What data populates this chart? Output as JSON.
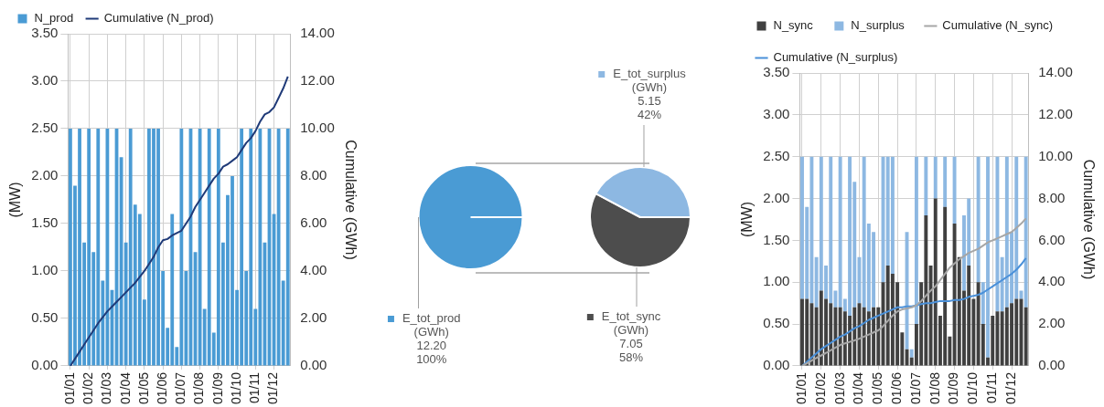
{
  "chart_data": [
    {
      "type": "bar",
      "legend": "top",
      "grid": true,
      "ylabel": "(MW)",
      "y2label": "Cumulative (GWh)",
      "categories": [
        "01/01",
        null,
        null,
        null,
        "01/02",
        null,
        null,
        null,
        "01/03",
        null,
        null,
        null,
        "01/04",
        null,
        null,
        null,
        "01/05",
        null,
        null,
        null,
        "01/06",
        null,
        null,
        null,
        "01/07",
        null,
        null,
        null,
        "01/08",
        null,
        null,
        null,
        "01/09",
        null,
        null,
        null,
        "01/10",
        null,
        null,
        null,
        "01/11",
        null,
        null,
        null,
        "01/12",
        null,
        null,
        null
      ],
      "ylim": [
        0,
        3.5
      ],
      "yticks": [
        {
          "value": 0,
          "label": "0.00"
        },
        {
          "value": 0.5,
          "label": "0.50"
        },
        {
          "value": 1,
          "label": "1.00"
        },
        {
          "value": 1.5,
          "label": "1.50"
        },
        {
          "value": 2,
          "label": "2.00"
        },
        {
          "value": 2.5,
          "label": "2.50"
        },
        {
          "value": 3,
          "label": "3.00"
        },
        {
          "value": 3.5,
          "label": "3.50"
        }
      ],
      "y2lim": [
        0,
        14
      ],
      "y2ticks": [
        {
          "value": 0,
          "label": "0.00"
        },
        {
          "value": 2,
          "label": "2.00"
        },
        {
          "value": 4,
          "label": "4.00"
        },
        {
          "value": 6,
          "label": "6.00"
        },
        {
          "value": 8,
          "label": "8.00"
        },
        {
          "value": 10,
          "label": "10.00"
        },
        {
          "value": 12,
          "label": "12.00"
        },
        {
          "value": 14,
          "label": "14.00"
        }
      ],
      "series": [
        {
          "name": "N_prod",
          "color": "#4a9bd4",
          "values": [
            2.5,
            1.9,
            2.5,
            1.3,
            2.5,
            1.2,
            2.5,
            0.9,
            2.5,
            0.8,
            2.5,
            2.2,
            1.3,
            2.5,
            1.7,
            1.6,
            0.7,
            2.5,
            2.5,
            2.5,
            1.0,
            0.4,
            1.6,
            0.2,
            2.5,
            1.0,
            2.5,
            1.2,
            2.5,
            0.6,
            2.5,
            0.35,
            2.5,
            1.3,
            1.8,
            2.0,
            0.8,
            2.5,
            1.0,
            2.5,
            0.6,
            2.5,
            1.3,
            2.5,
            1.6,
            2.5,
            0.9,
            2.5
          ]
        },
        {
          "name": "Cumulative (N_prod)",
          "type": "line",
          "axis": "y2",
          "color": "#1f3a78",
          "values": [
            0,
            0.3,
            0.6,
            0.9,
            1.2,
            1.5,
            1.8,
            2.05,
            2.3,
            2.5,
            2.7,
            2.9,
            3.1,
            3.3,
            3.5,
            3.75,
            4.0,
            4.3,
            4.6,
            5.0,
            5.3,
            5.35,
            5.5,
            5.6,
            5.7,
            6.0,
            6.3,
            6.7,
            7.0,
            7.3,
            7.6,
            7.9,
            8.1,
            8.4,
            8.5,
            8.65,
            8.8,
            9.1,
            9.4,
            9.6,
            9.9,
            10.3,
            10.6,
            10.7,
            10.9,
            11.3,
            11.7,
            12.2
          ]
        }
      ]
    },
    {
      "type": "pie",
      "legend": "bottom left",
      "categories": [
        "E_tot_prod (GWh)"
      ],
      "values": [
        12.2
      ],
      "colors": [
        "#4a9bd4"
      ],
      "value_labels": [
        "12.20"
      ],
      "annotations": [
        "100%"
      ]
    },
    {
      "type": "pie",
      "legend": "right",
      "categories": [
        "E_tot_sync (GWh)",
        "E_tot_surplus (GWh)"
      ],
      "values": [
        7.05,
        5.15
      ],
      "colors": [
        "#4d4d4d",
        "#8db8e2"
      ],
      "value_labels": [
        "7.05",
        "5.15"
      ],
      "annotations": [
        "58%",
        "42%"
      ]
    },
    {
      "type": "bar",
      "legend": "top",
      "grid": true,
      "stacked": true,
      "ylabel": "(MW)",
      "y2label": "Cumulative (GWh)",
      "categories": [
        "01/01",
        null,
        null,
        null,
        "01/02",
        null,
        null,
        null,
        "01/03",
        null,
        null,
        null,
        "01/04",
        null,
        null,
        null,
        "01/05",
        null,
        null,
        null,
        "01/06",
        null,
        null,
        null,
        "01/07",
        null,
        null,
        null,
        "01/08",
        null,
        null,
        null,
        "01/09",
        null,
        null,
        null,
        "01/10",
        null,
        null,
        null,
        "01/11",
        null,
        null,
        null,
        "01/12",
        null,
        null,
        null
      ],
      "ylim": [
        0,
        3.5
      ],
      "yticks": [
        {
          "value": 0,
          "label": "0.00"
        },
        {
          "value": 0.5,
          "label": "0.50"
        },
        {
          "value": 1,
          "label": "1.00"
        },
        {
          "value": 1.5,
          "label": "1.50"
        },
        {
          "value": 2,
          "label": "2.00"
        },
        {
          "value": 2.5,
          "label": "2.50"
        },
        {
          "value": 3,
          "label": "3.00"
        },
        {
          "value": 3.5,
          "label": "3.50"
        }
      ],
      "y2lim": [
        0,
        14
      ],
      "y2ticks": [
        {
          "value": 0,
          "label": "0.00"
        },
        {
          "value": 2,
          "label": "2.00"
        },
        {
          "value": 4,
          "label": "4.00"
        },
        {
          "value": 6,
          "label": "6.00"
        },
        {
          "value": 8,
          "label": "8.00"
        },
        {
          "value": 10,
          "label": "10.00"
        },
        {
          "value": 12,
          "label": "12.00"
        },
        {
          "value": 14,
          "label": "14.00"
        }
      ],
      "series": [
        {
          "name": "N_sync",
          "color": "#404040",
          "values": [
            0.8,
            0.8,
            0.75,
            0.7,
            0.9,
            0.8,
            0.75,
            0.7,
            0.7,
            0.65,
            0.6,
            0.7,
            0.75,
            0.7,
            0.65,
            0.7,
            0.7,
            1.0,
            1.2,
            1.1,
            1.0,
            0.4,
            0.2,
            0.1,
            0.5,
            1.0,
            1.8,
            1.2,
            2.0,
            0.6,
            1.9,
            0.35,
            1.7,
            1.3,
            0.9,
            1.2,
            0.8,
            1.0,
            0.5,
            0.1,
            0.6,
            0.65,
            0.65,
            0.7,
            0.75,
            0.8,
            0.8,
            0.7
          ]
        },
        {
          "name": "N_surplus",
          "color": "#8db8e2",
          "values": [
            1.7,
            1.1,
            1.75,
            0.6,
            1.6,
            0.4,
            1.75,
            0.2,
            1.8,
            0.15,
            1.9,
            1.5,
            0.55,
            1.8,
            1.05,
            0.9,
            0,
            1.5,
            1.3,
            1.4,
            0,
            0,
            1.4,
            0.1,
            2.0,
            0,
            0.7,
            0,
            0.5,
            0,
            0.6,
            0,
            0.8,
            0,
            0.9,
            0.8,
            0,
            1.5,
            0.5,
            2.4,
            0,
            1.85,
            0.65,
            1.8,
            0.85,
            1.7,
            0.1,
            1.8
          ]
        },
        {
          "name": "Cumulative (N_sync)",
          "type": "line",
          "axis": "y2",
          "color": "#a6a6a6",
          "values": [
            0,
            0.12,
            0.25,
            0.38,
            0.5,
            0.62,
            0.75,
            0.88,
            1.0,
            1.08,
            1.15,
            1.22,
            1.3,
            1.4,
            1.5,
            1.6,
            1.7,
            1.9,
            2.15,
            2.4,
            2.6,
            2.7,
            2.75,
            2.8,
            2.9,
            3.1,
            3.35,
            3.6,
            3.8,
            4.1,
            4.4,
            4.7,
            4.9,
            5.1,
            5.25,
            5.4,
            5.5,
            5.6,
            5.75,
            5.9,
            6.0,
            6.1,
            6.2,
            6.3,
            6.4,
            6.6,
            6.8,
            7.05
          ]
        },
        {
          "name": "Cumulative (N_surplus)",
          "type": "line",
          "axis": "y2",
          "color": "#4a90d9",
          "values": [
            0,
            0.2,
            0.4,
            0.6,
            0.8,
            0.95,
            1.1,
            1.25,
            1.4,
            1.5,
            1.65,
            1.8,
            1.9,
            2.05,
            2.2,
            2.3,
            2.4,
            2.5,
            2.6,
            2.7,
            2.8,
            2.8,
            2.85,
            2.85,
            2.9,
            2.95,
            3.0,
            3.0,
            3.05,
            3.1,
            3.1,
            3.1,
            3.15,
            3.15,
            3.2,
            3.3,
            3.35,
            3.4,
            3.5,
            3.65,
            3.8,
            3.95,
            4.1,
            4.25,
            4.4,
            4.6,
            4.85,
            5.15
          ]
        }
      ]
    }
  ]
}
